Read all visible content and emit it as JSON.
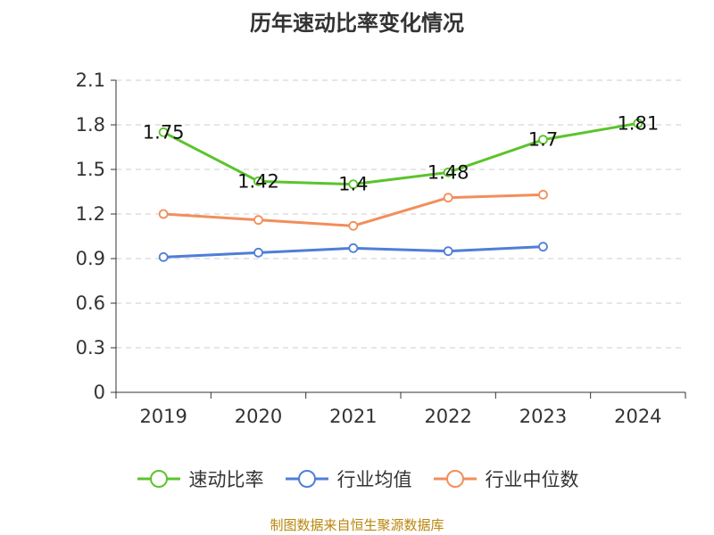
{
  "chart_data": {
    "type": "line",
    "title": "历年速动比率变化情况",
    "categories": [
      "2019",
      "2020",
      "2021",
      "2022",
      "2023",
      "2024"
    ],
    "ylim": [
      0,
      2.1
    ],
    "yticks": [
      "0",
      "0.3",
      "0.6",
      "0.9",
      "1.2",
      "1.5",
      "1.8",
      "2.1"
    ],
    "grid": true,
    "legend_position": "bottom",
    "series": [
      {
        "name": "速动比率",
        "color": "#5cc32c",
        "values": [
          1.75,
          1.42,
          1.4,
          1.48,
          1.7,
          1.81
        ],
        "data_labels": [
          "1.75",
          "1.42",
          "1.4",
          "1.48",
          "1.7",
          "1.81"
        ]
      },
      {
        "name": "行业均值",
        "color": "#4f7ed8",
        "values": [
          0.91,
          0.94,
          0.97,
          0.95,
          0.98,
          null
        ]
      },
      {
        "name": "行业中位数",
        "color": "#f28e5a",
        "values": [
          1.2,
          1.16,
          1.12,
          1.31,
          1.33,
          null
        ]
      }
    ]
  },
  "footer": {
    "source": "制图数据来自恒生聚源数据库"
  }
}
